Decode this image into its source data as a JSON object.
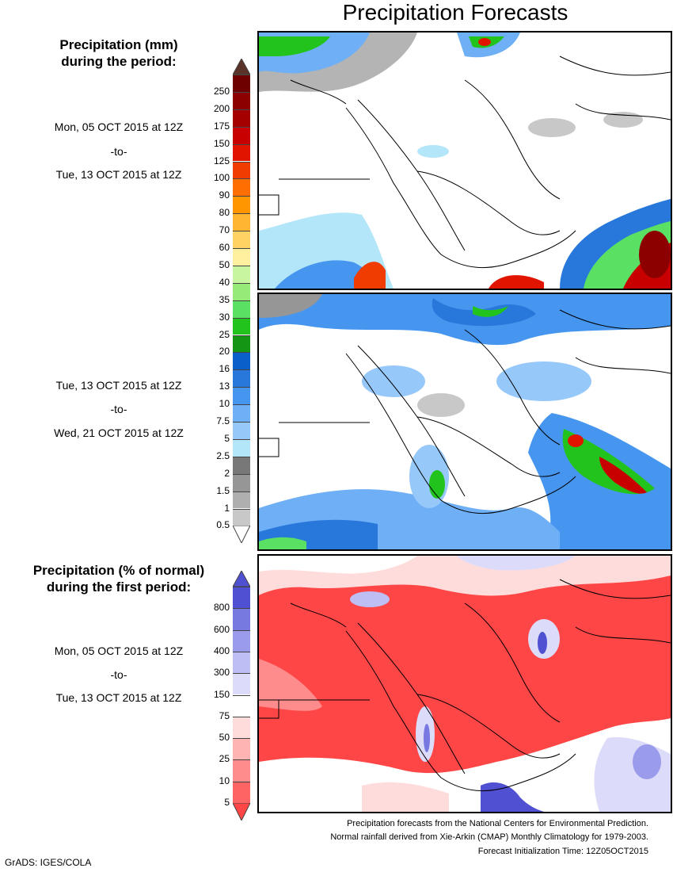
{
  "title": "Precipitation Forecasts",
  "legend_mm": {
    "heading_line1": "Precipitation (mm)",
    "heading_line2": "during the period:",
    "levels": [
      "250",
      "200",
      "175",
      "150",
      "125",
      "100",
      "90",
      "80",
      "70",
      "60",
      "50",
      "40",
      "35",
      "30",
      "25",
      "20",
      "16",
      "13",
      "10",
      "7.5",
      "5",
      "2.5",
      "2",
      "1.5",
      "1",
      "0.5"
    ],
    "colors": [
      "#6e0000",
      "#8c0000",
      "#a50000",
      "#c80000",
      "#e11400",
      "#f03c00",
      "#ff6e00",
      "#ff9600",
      "#ffb432",
      "#ffd264",
      "#fff0a0",
      "#c8f5a0",
      "#96eb78",
      "#5ae164",
      "#23c31e",
      "#149614",
      "#0a5fc8",
      "#2878dc",
      "#4696f0",
      "#6eaff5",
      "#96c8fa",
      "#b4e6fa",
      "#787878",
      "#969696",
      "#afafaf",
      "#c8c8c8"
    ]
  },
  "period1": {
    "start": "Mon, 05 OCT 2015 at 12Z",
    "sep": "-to-",
    "end": "Tue, 13 OCT 2015 at 12Z"
  },
  "period2": {
    "start": "Tue, 13 OCT 2015 at 12Z",
    "sep": "-to-",
    "end": "Wed, 21 OCT 2015 at 12Z"
  },
  "legend_pct": {
    "heading_line1": "Precipitation (% of normal)",
    "heading_line2": "during the first period:",
    "levels": [
      "800",
      "600",
      "400",
      "300",
      "150",
      "75",
      "50",
      "25",
      "10",
      "5"
    ],
    "colors": [
      "#5050d2",
      "#7878e1",
      "#9b9beb",
      "#bebef5",
      "#dcdcfa",
      "#ffffff",
      "#ffdcdc",
      "#ffb4b4",
      "#ff8c8c",
      "#ff6464",
      "#ff4646"
    ]
  },
  "period3": {
    "start": "Mon, 05 OCT 2015 at 12Z",
    "sep": "-to-",
    "end": "Tue, 13 OCT 2015 at 12Z"
  },
  "footer": {
    "line1": "Precipitation forecasts from the National Centers for Environmental Prediction.",
    "line2": "Normal rainfall derived from Xie-Arkin (CMAP) Monthly Climatology for 1979-2003.",
    "line3": "Forecast Initialization Time: 12Z05OCT2015"
  },
  "credit": "GrADS: IGES/COLA"
}
